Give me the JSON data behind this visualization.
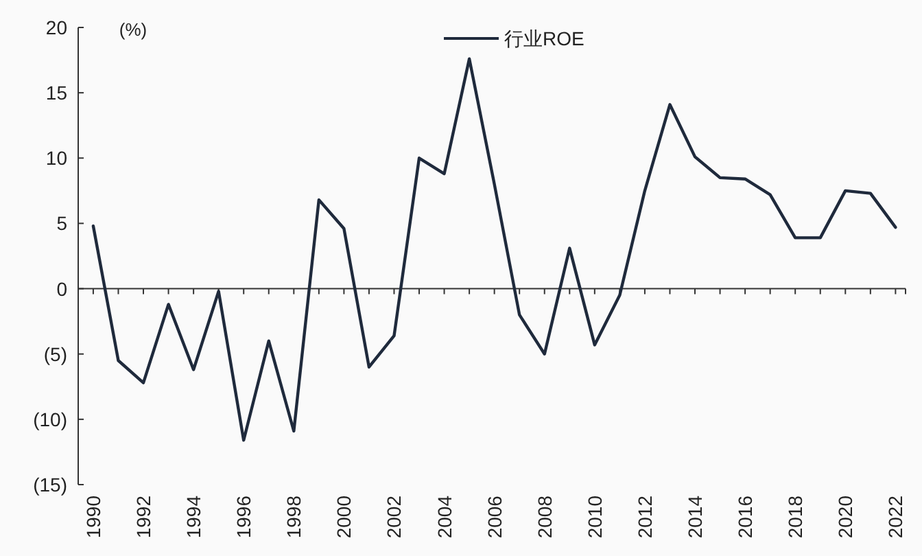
{
  "chart_data": {
    "type": "line",
    "ylabel": "(%)",
    "legend": "top",
    "x": [
      1990,
      1991,
      1992,
      1993,
      1994,
      1995,
      1996,
      1997,
      1998,
      1999,
      2000,
      2001,
      2002,
      2003,
      2004,
      2005,
      2006,
      2007,
      2008,
      2009,
      2010,
      2011,
      2012,
      2013,
      2014,
      2015,
      2016,
      2017,
      2018,
      2019,
      2020,
      2021,
      2022
    ],
    "series": [
      {
        "name": "行业ROE",
        "color": "#1f2a3c",
        "values": [
          4.8,
          -5.5,
          -7.2,
          -1.2,
          -6.2,
          -0.2,
          -11.6,
          -4,
          -10.9,
          6.8,
          4.6,
          -6,
          -3.6,
          10,
          8.8,
          17.6,
          8,
          -2,
          -5,
          3.1,
          -4.3,
          -0.5,
          7.5,
          14.1,
          10.1,
          8.5,
          8.4,
          7.2,
          3.9,
          3.9,
          7.5,
          7.3,
          4.7
        ]
      }
    ],
    "xlim": [
      1989.4,
      2022.4
    ],
    "xticks": [
      1990,
      {
        "value": 1991,
        "label": null
      },
      1992,
      {
        "value": 1993,
        "label": null
      },
      1994,
      {
        "value": 1995,
        "label": null
      },
      1996,
      {
        "value": 1997,
        "label": null
      },
      1998,
      {
        "value": 1999,
        "label": null
      },
      2000,
      {
        "value": 2001,
        "label": null
      },
      2002,
      {
        "value": 2003,
        "label": null
      },
      2004,
      {
        "value": 2005,
        "label": null
      },
      2006,
      {
        "value": 2007,
        "label": null
      },
      2008,
      {
        "value": 2009,
        "label": null
      },
      2010,
      {
        "value": 2011,
        "label": null
      },
      2012,
      {
        "value": 2013,
        "label": null
      },
      2014,
      {
        "value": 2015,
        "label": null
      },
      2016,
      {
        "value": 2017,
        "label": null
      },
      2018,
      {
        "value": 2019,
        "label": null
      },
      2020,
      {
        "value": 2021,
        "label": null
      },
      2022
    ],
    "ylim": [
      -15,
      20
    ],
    "yticks": [
      {
        "value": -15,
        "label": "(15)"
      },
      {
        "value": -10,
        "label": "(10)"
      },
      {
        "value": -5,
        "label": "(5)"
      },
      0,
      5,
      10,
      15,
      20
    ],
    "line_style": "solid",
    "marker": "none"
  }
}
